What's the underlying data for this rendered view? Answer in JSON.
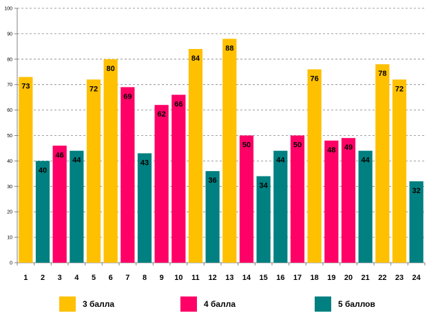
{
  "chart_data": {
    "type": "bar",
    "title": "",
    "xlabel": "",
    "ylabel": "",
    "ylim": [
      0,
      100
    ],
    "yticks": [
      0,
      10,
      20,
      30,
      40,
      50,
      60,
      70,
      80,
      90,
      100
    ],
    "grid": true,
    "legend_position": "bottom",
    "categories": [
      "1",
      "2",
      "3",
      "4",
      "5",
      "6",
      "7",
      "8",
      "9",
      "10",
      "11",
      "12",
      "13",
      "14",
      "15",
      "16",
      "17",
      "18",
      "19",
      "20",
      "21",
      "22",
      "23",
      "24"
    ],
    "values": [
      73,
      40,
      46,
      44,
      72,
      80,
      69,
      43,
      62,
      66,
      84,
      36,
      88,
      50,
      34,
      44,
      50,
      76,
      48,
      49,
      44,
      78,
      72,
      32
    ],
    "groups": [
      3,
      5,
      4,
      5,
      3,
      3,
      4,
      5,
      4,
      4,
      3,
      5,
      3,
      4,
      5,
      5,
      4,
      3,
      4,
      4,
      5,
      3,
      3,
      5
    ],
    "series": [
      {
        "key": 3,
        "name": "3 балла",
        "color": "#FFC000"
      },
      {
        "key": 4,
        "name": "4 балла",
        "color": "#FF0066"
      },
      {
        "key": 5,
        "name": "5 баллов",
        "color": "#008080"
      }
    ]
  }
}
